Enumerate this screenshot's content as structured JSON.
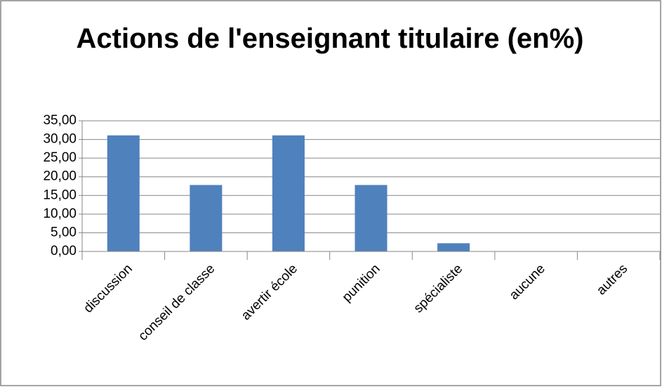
{
  "chart_data": {
    "type": "bar",
    "title": "Actions de l'enseignant titulaire (en%)",
    "categories": [
      "discussion",
      "conseil de classe",
      "avertir école",
      "punition",
      "spécialiste",
      "aucune",
      "autres"
    ],
    "values": [
      31.1,
      17.8,
      31.1,
      17.8,
      2.2,
      0,
      0
    ],
    "color": "#4f81bd",
    "ylim": [
      0,
      35
    ],
    "yticks": [
      {
        "value": 0,
        "label": "0,00"
      },
      {
        "value": 5,
        "label": "5,00"
      },
      {
        "value": 10,
        "label": "10,00"
      },
      {
        "value": 15,
        "label": "15,00"
      },
      {
        "value": 20,
        "label": "20,00"
      },
      {
        "value": 25,
        "label": "25,00"
      },
      {
        "value": 30,
        "label": "30,00"
      },
      {
        "value": 35,
        "label": "35,00"
      }
    ],
    "grid": true
  }
}
